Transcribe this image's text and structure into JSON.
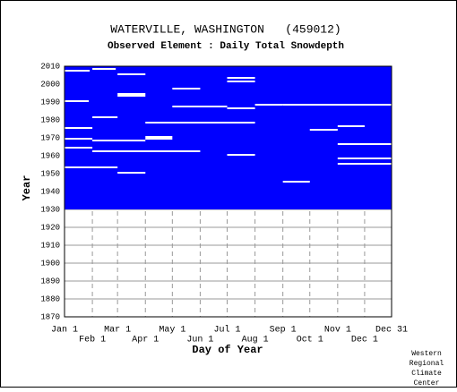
{
  "chart_data": {
    "type": "availability",
    "title": "WATERVILLE, WASHINGTON   (459012)",
    "subtitle": "Observed Element : Daily Total Snowdepth",
    "xlabel": "Day of Year",
    "ylabel": "Year",
    "footer": [
      "Western",
      "Regional",
      "Climate",
      "Center"
    ],
    "xlim": [
      1,
      365
    ],
    "xticks": [
      {
        "value": 1,
        "label": "Jan 1"
      },
      {
        "value": 32,
        "label": "Feb 1"
      },
      {
        "value": 60,
        "label": "Mar 1"
      },
      {
        "value": 91,
        "label": "Apr 1"
      },
      {
        "value": 121,
        "label": "May 1"
      },
      {
        "value": 152,
        "label": "Jun 1"
      },
      {
        "value": 182,
        "label": "Jul 1"
      },
      {
        "value": 213,
        "label": "Aug 1"
      },
      {
        "value": 244,
        "label": "Sep 1"
      },
      {
        "value": 274,
        "label": "Oct 1"
      },
      {
        "value": 305,
        "label": "Nov 1"
      },
      {
        "value": 335,
        "label": "Dec 1"
      },
      {
        "value": 365,
        "label": "Dec 31"
      }
    ],
    "ylim": [
      1870,
      2010
    ],
    "yticks": [
      1870,
      1880,
      1890,
      1900,
      1910,
      1920,
      1930,
      1940,
      1950,
      1960,
      1970,
      1980,
      1990,
      2000,
      2010
    ],
    "grid": true,
    "color": "#0000ff",
    "gap_color": "#ffffff",
    "coverage": {
      "start_year": 1930,
      "end_year": 2010
    },
    "gaps": [
      {
        "year": 2007,
        "start": 1,
        "end": 29
      },
      {
        "year": 2008,
        "start": 32,
        "end": 58
      },
      {
        "year": 2005,
        "start": 60,
        "end": 91
      },
      {
        "year": 1994,
        "start": 60,
        "end": 91
      },
      {
        "year": 1993,
        "start": 60,
        "end": 91
      },
      {
        "year": 1997,
        "start": 121,
        "end": 152
      },
      {
        "year": 2003,
        "start": 182,
        "end": 213
      },
      {
        "year": 2001,
        "start": 182,
        "end": 213
      },
      {
        "year": 1990,
        "start": 1,
        "end": 28
      },
      {
        "year": 1987,
        "start": 121,
        "end": 182
      },
      {
        "year": 1986,
        "start": 182,
        "end": 213
      },
      {
        "year": 1988,
        "start": 213,
        "end": 244
      },
      {
        "year": 1988,
        "start": 244,
        "end": 365
      },
      {
        "year": 1981,
        "start": 32,
        "end": 60
      },
      {
        "year": 1975,
        "start": 1,
        "end": 32
      },
      {
        "year": 1978,
        "start": 91,
        "end": 213
      },
      {
        "year": 1974,
        "start": 274,
        "end": 305
      },
      {
        "year": 1976,
        "start": 305,
        "end": 335
      },
      {
        "year": 1970,
        "start": 91,
        "end": 121
      },
      {
        "year": 1969,
        "start": 91,
        "end": 121
      },
      {
        "year": 1968,
        "start": 32,
        "end": 91
      },
      {
        "year": 1969,
        "start": 1,
        "end": 32
      },
      {
        "year": 1966,
        "start": 305,
        "end": 365
      },
      {
        "year": 1964,
        "start": 1,
        "end": 32
      },
      {
        "year": 1962,
        "start": 32,
        "end": 152
      },
      {
        "year": 1960,
        "start": 182,
        "end": 213
      },
      {
        "year": 1945,
        "start": 244,
        "end": 274
      },
      {
        "year": 1950,
        "start": 60,
        "end": 91
      },
      {
        "year": 1953,
        "start": 1,
        "end": 60
      },
      {
        "year": 1958,
        "start": 305,
        "end": 365
      },
      {
        "year": 1955,
        "start": 305,
        "end": 365
      }
    ]
  }
}
